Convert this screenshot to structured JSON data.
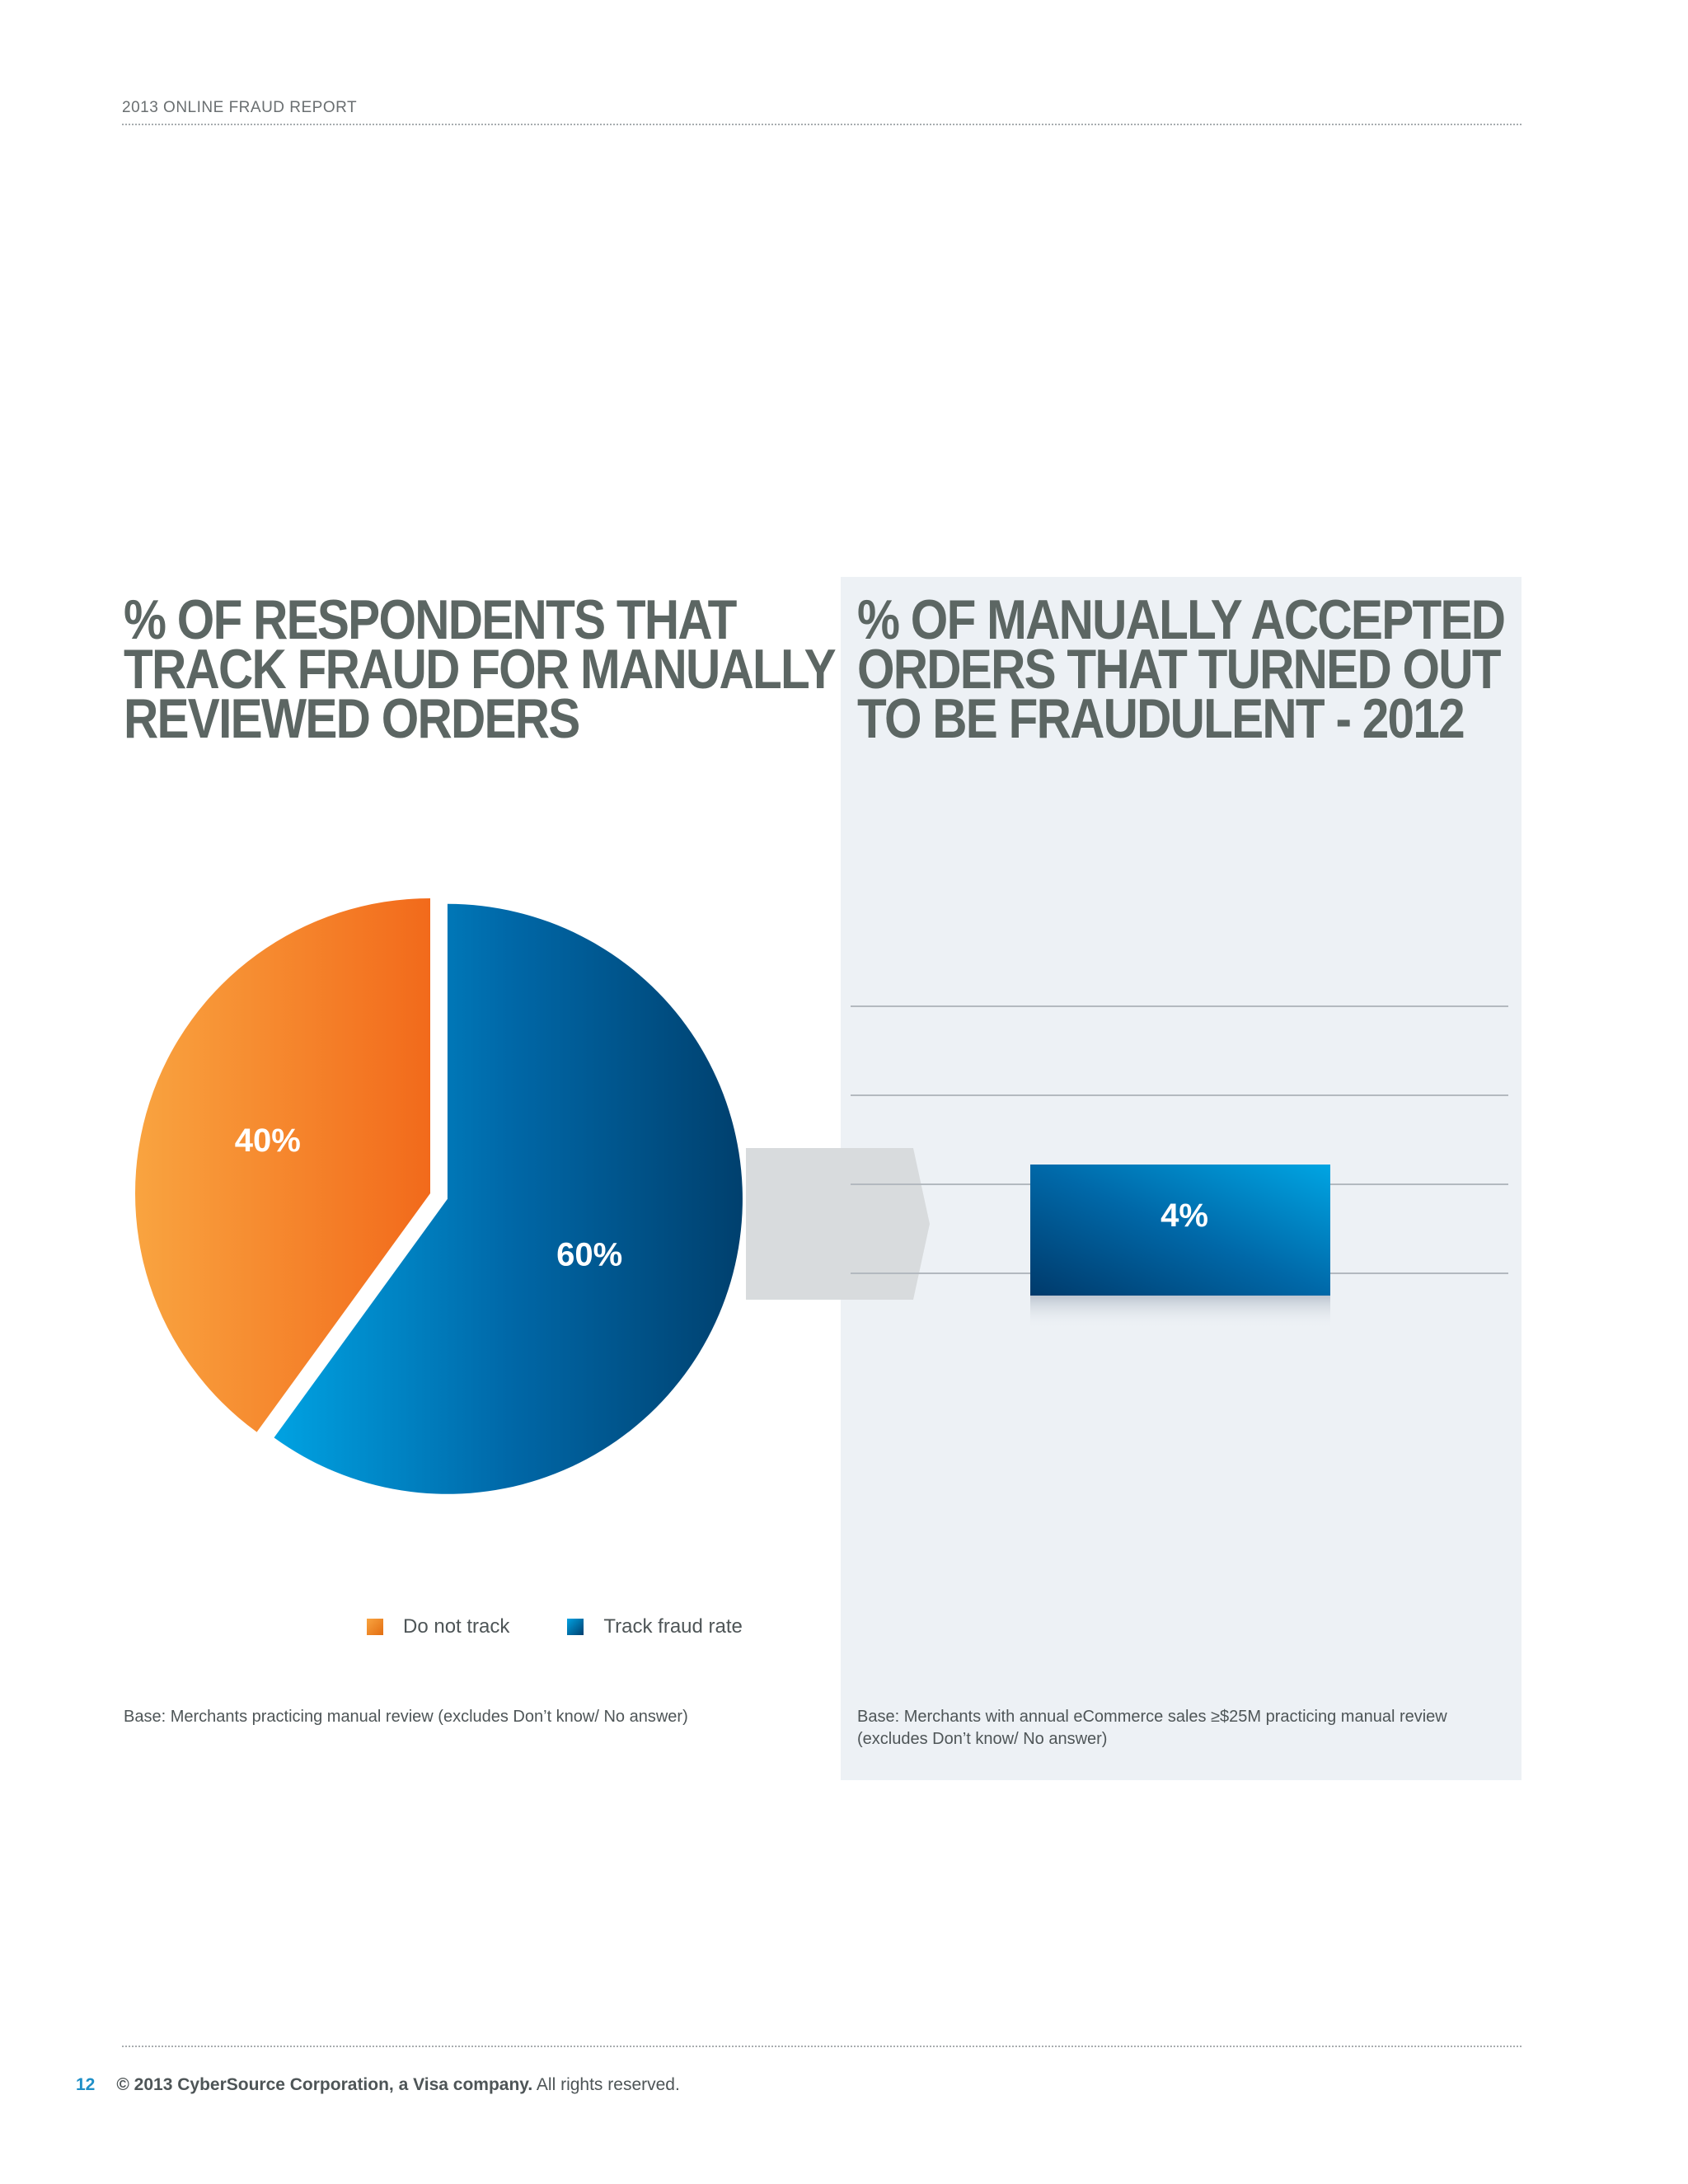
{
  "header": {
    "running_title": "2013 ONLINE FRAUD REPORT"
  },
  "left_chart": {
    "title_lines": [
      "% OF RESPONDENTS THAT",
      "TRACK FRAUD FOR MANUALLY",
      "REVIEWED ORDERS"
    ],
    "base_note": "Base: Merchants practicing manual review (excludes Don’t know/ No answer)",
    "legend": [
      {
        "label": "Do not track",
        "color": "#f47b20"
      },
      {
        "label": "Track fraud rate",
        "color": "#0067a8"
      }
    ]
  },
  "right_chart": {
    "title_lines": [
      "% OF MANUALLY ACCEPTED",
      "ORDERS THAT TURNED OUT",
      "TO BE FRAUDULENT - 2012"
    ],
    "base_note_lines": [
      "Base: Merchants with annual eCommerce sales ≥$25M practicing manual review",
      "(excludes Don’t know/ No answer)"
    ]
  },
  "chart_data": [
    {
      "type": "pie",
      "categories": [
        "Do not track",
        "Track fraud rate"
      ],
      "values": [
        40,
        60
      ],
      "labels": [
        "40%",
        "60%"
      ],
      "colors": [
        "#f47b20",
        "#0067a8"
      ],
      "exploded": "Track fraud rate"
    },
    {
      "type": "bar",
      "categories": [
        ""
      ],
      "values": [
        4
      ],
      "labels": [
        "4%"
      ],
      "grid": true
    }
  ],
  "footer": {
    "page_number": "12",
    "copyright_bold": "© 2013 CyberSource Corporation, a Visa company.",
    "copyright_rest": " All rights reserved."
  }
}
